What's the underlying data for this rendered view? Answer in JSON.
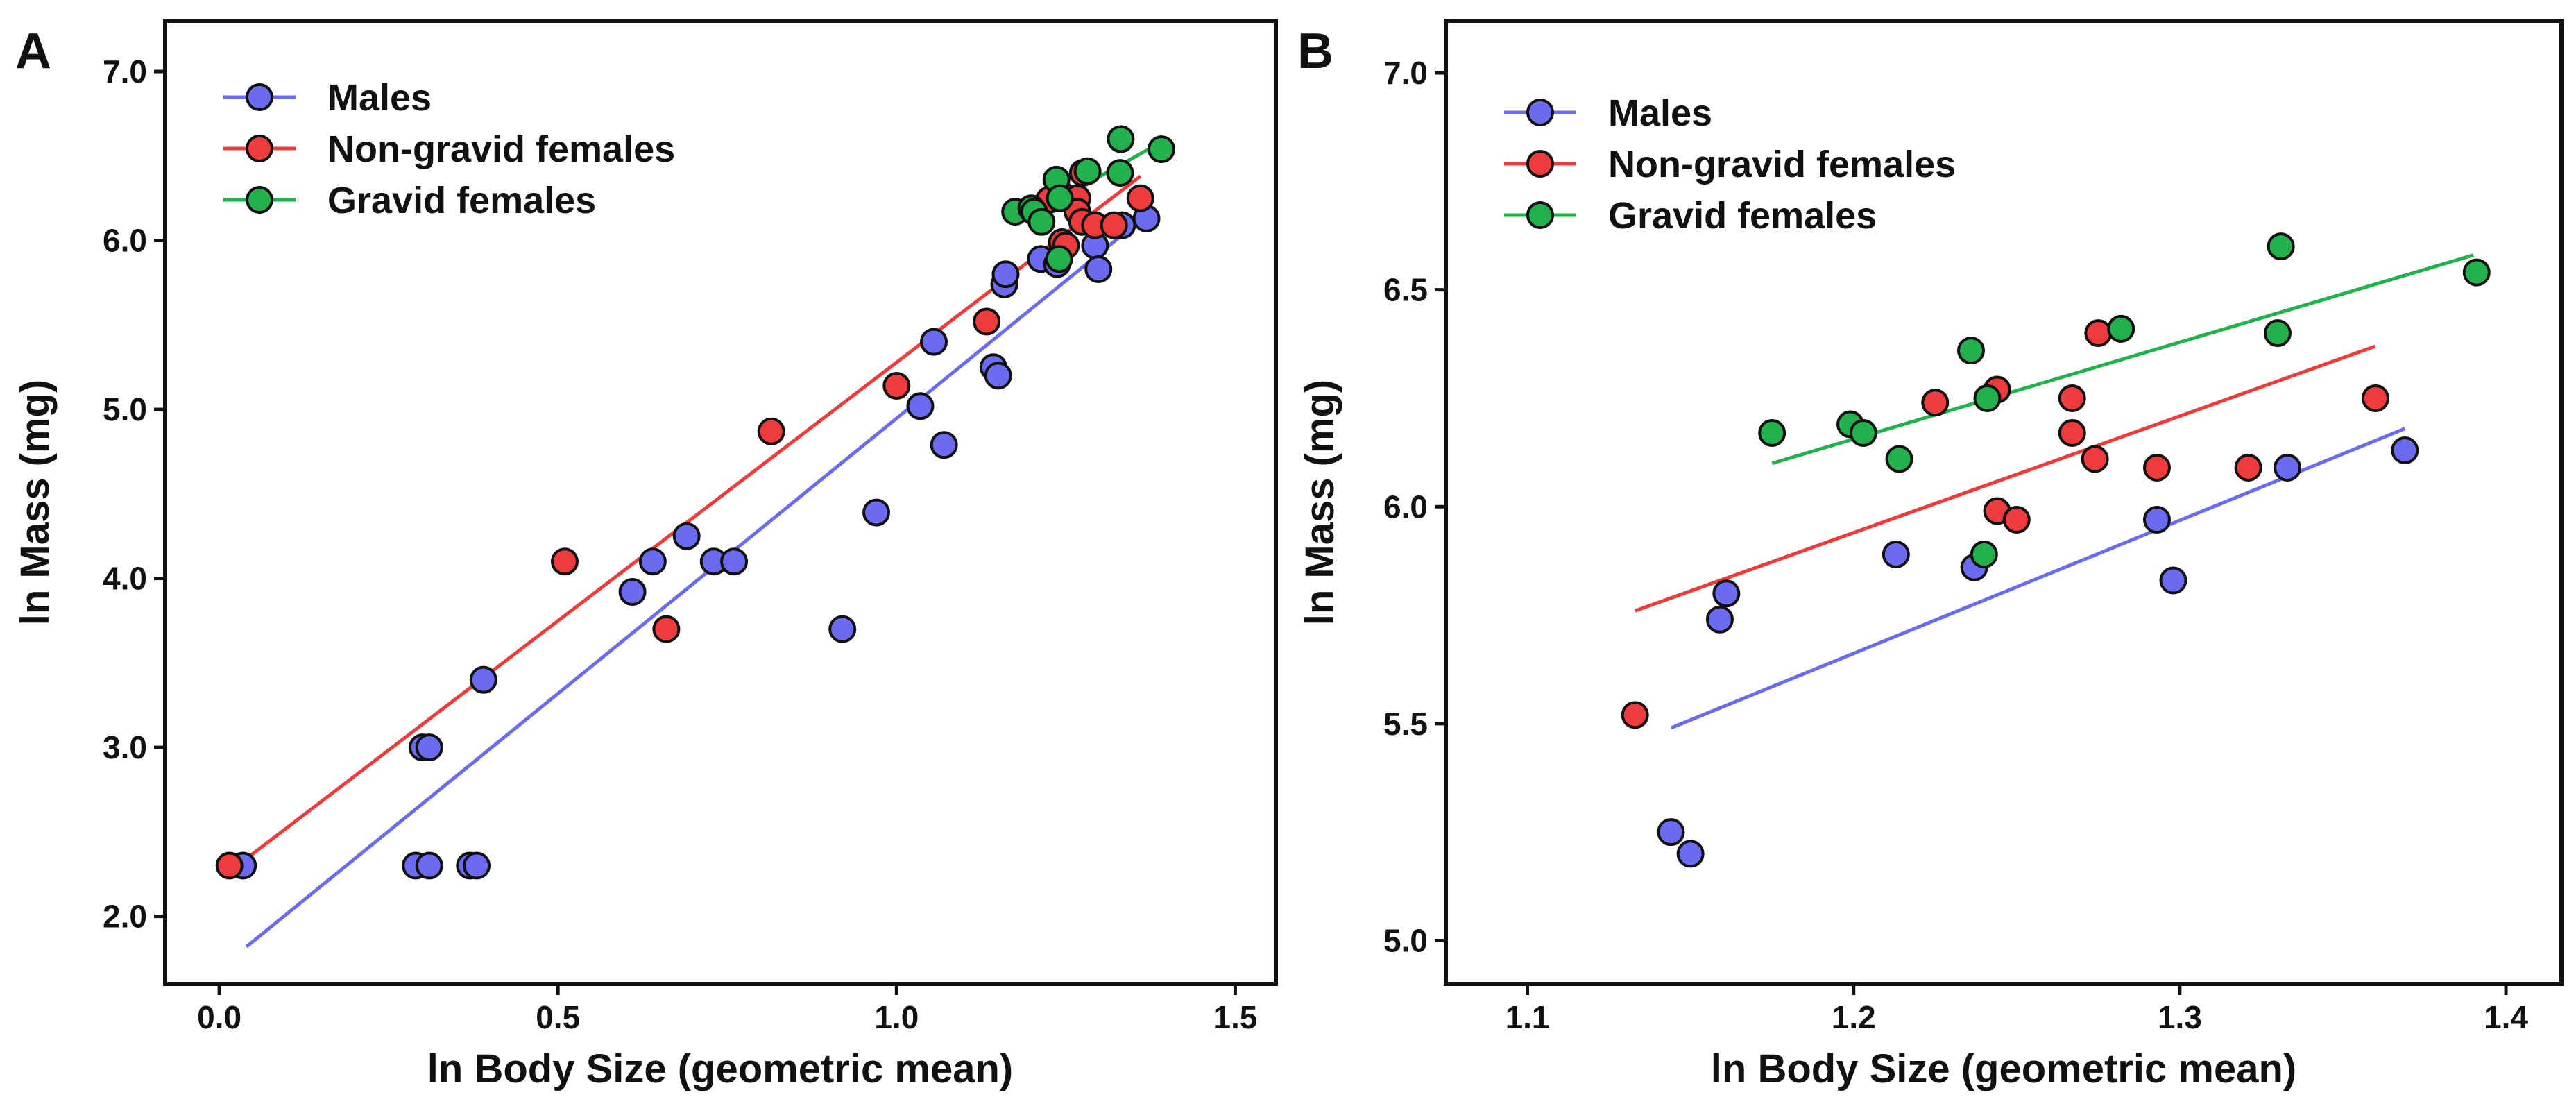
{
  "chart_data": [
    {
      "type": "scatter",
      "panel_label": "A",
      "xlabel": "ln Body Size (geometric mean)",
      "ylabel": "ln Mass (mg)",
      "xlim": [
        -0.08,
        1.56
      ],
      "ylim": [
        1.6,
        7.3
      ],
      "xticks": [
        0.0,
        0.5,
        1.0,
        1.5
      ],
      "xtick_labels": [
        "0.0",
        "0.5",
        "1.0",
        "1.5"
      ],
      "yticks": [
        2.0,
        3.0,
        4.0,
        5.0,
        6.0,
        7.0
      ],
      "ytick_labels": [
        "2.0",
        "3.0",
        "4.0",
        "5.0",
        "6.0",
        "7.0"
      ],
      "legend_position": "top-left",
      "series": [
        {
          "name": "Males",
          "color": "#6b6bf0",
          "line_color": "#6b6bf0",
          "points": [
            [
              0.035,
              2.3
            ],
            [
              0.29,
              2.3
            ],
            [
              0.31,
              2.3
            ],
            [
              0.37,
              2.3
            ],
            [
              0.38,
              2.3
            ],
            [
              0.3,
              3.0
            ],
            [
              0.31,
              3.0
            ],
            [
              0.39,
              3.4
            ],
            [
              0.61,
              3.92
            ],
            [
              0.64,
              4.1
            ],
            [
              0.69,
              4.25
            ],
            [
              0.73,
              4.1
            ],
            [
              0.76,
              4.1
            ],
            [
              0.92,
              3.7
            ],
            [
              0.97,
              4.39
            ],
            [
              1.035,
              5.02
            ],
            [
              1.055,
              5.4
            ],
            [
              1.07,
              4.79
            ],
            [
              1.143,
              5.25
            ],
            [
              1.15,
              5.2
            ],
            [
              1.159,
              5.74
            ],
            [
              1.161,
              5.8
            ],
            [
              1.213,
              5.89
            ],
            [
              1.237,
              5.86
            ],
            [
              1.293,
              5.97
            ],
            [
              1.298,
              5.83
            ],
            [
              1.333,
              6.09
            ],
            [
              1.369,
              6.13
            ]
          ],
          "fit": [
            [
              0.04,
              1.82
            ],
            [
              1.36,
              6.12
            ]
          ]
        },
        {
          "name": "Non-gravid females",
          "color": "#ee3b3b",
          "line_color": "#ee3b3b",
          "points": [
            [
              0.015,
              2.3
            ],
            [
              0.51,
              4.1
            ],
            [
              0.66,
              3.7
            ],
            [
              0.815,
              4.87
            ],
            [
              1.0,
              5.14
            ],
            [
              1.133,
              5.52
            ],
            [
              1.225,
              6.24
            ],
            [
              1.244,
              5.99
            ],
            [
              1.25,
              5.97
            ],
            [
              1.244,
              6.27
            ],
            [
              1.267,
              6.25
            ],
            [
              1.267,
              6.17
            ],
            [
              1.274,
              6.11
            ],
            [
              1.275,
              6.4
            ],
            [
              1.293,
              6.09
            ],
            [
              1.321,
              6.09
            ],
            [
              1.36,
              6.25
            ]
          ],
          "fit": [
            [
              0.02,
              2.28
            ],
            [
              1.36,
              6.38
            ]
          ]
        },
        {
          "name": "Gravid females",
          "color": "#22b14c",
          "line_color": "#22b14c",
          "points": [
            [
              1.175,
              6.17
            ],
            [
              1.199,
              6.19
            ],
            [
              1.203,
              6.17
            ],
            [
              1.214,
              6.11
            ],
            [
              1.236,
              6.36
            ],
            [
              1.24,
              5.89
            ],
            [
              1.241,
              6.25
            ],
            [
              1.282,
              6.41
            ],
            [
              1.33,
              6.4
            ],
            [
              1.331,
              6.6
            ],
            [
              1.391,
              6.54
            ]
          ],
          "fit": [
            [
              1.175,
              6.1
            ],
            [
              1.39,
              6.58
            ]
          ]
        }
      ]
    },
    {
      "type": "scatter",
      "panel_label": "B",
      "xlabel": "ln Body Size (geometric mean)",
      "ylabel": "ln Mass (mg)",
      "xlim": [
        1.075,
        1.417
      ],
      "ylim": [
        4.9,
        7.12
      ],
      "xticks": [
        1.1,
        1.2,
        1.3,
        1.4
      ],
      "xtick_labels": [
        "1.1",
        "1.2",
        "1.3",
        "1.4"
      ],
      "yticks": [
        5.0,
        5.5,
        6.0,
        6.5,
        7.0
      ],
      "ytick_labels": [
        "5.0",
        "5.5",
        "6.0",
        "6.5",
        "7.0"
      ],
      "legend_position": "top-left",
      "series": [
        {
          "name": "Males",
          "color": "#6b6bf0",
          "line_color": "#6b6bf0",
          "points": [
            [
              1.144,
              5.25
            ],
            [
              1.15,
              5.2
            ],
            [
              1.159,
              5.74
            ],
            [
              1.161,
              5.8
            ],
            [
              1.213,
              5.89
            ],
            [
              1.237,
              5.86
            ],
            [
              1.293,
              5.97
            ],
            [
              1.298,
              5.83
            ],
            [
              1.333,
              6.09
            ],
            [
              1.369,
              6.13
            ]
          ],
          "fit": [
            [
              1.144,
              5.49
            ],
            [
              1.369,
              6.18
            ]
          ]
        },
        {
          "name": "Non-gravid females",
          "color": "#ee3b3b",
          "line_color": "#ee3b3b",
          "points": [
            [
              1.133,
              5.52
            ],
            [
              1.225,
              6.24
            ],
            [
              1.244,
              5.99
            ],
            [
              1.25,
              5.97
            ],
            [
              1.244,
              6.27
            ],
            [
              1.267,
              6.25
            ],
            [
              1.267,
              6.17
            ],
            [
              1.274,
              6.11
            ],
            [
              1.275,
              6.4
            ],
            [
              1.293,
              6.09
            ],
            [
              1.321,
              6.09
            ],
            [
              1.36,
              6.25
            ]
          ],
          "fit": [
            [
              1.133,
              5.76
            ],
            [
              1.36,
              6.37
            ]
          ]
        },
        {
          "name": "Gravid females",
          "color": "#22b14c",
          "line_color": "#22b14c",
          "points": [
            [
              1.175,
              6.17
            ],
            [
              1.199,
              6.19
            ],
            [
              1.203,
              6.17
            ],
            [
              1.214,
              6.11
            ],
            [
              1.236,
              6.36
            ],
            [
              1.24,
              5.89
            ],
            [
              1.241,
              6.25
            ],
            [
              1.282,
              6.41
            ],
            [
              1.33,
              6.4
            ],
            [
              1.331,
              6.6
            ],
            [
              1.391,
              6.54
            ]
          ],
          "fit": [
            [
              1.175,
              6.1
            ],
            [
              1.39,
              6.58
            ]
          ]
        }
      ]
    }
  ]
}
